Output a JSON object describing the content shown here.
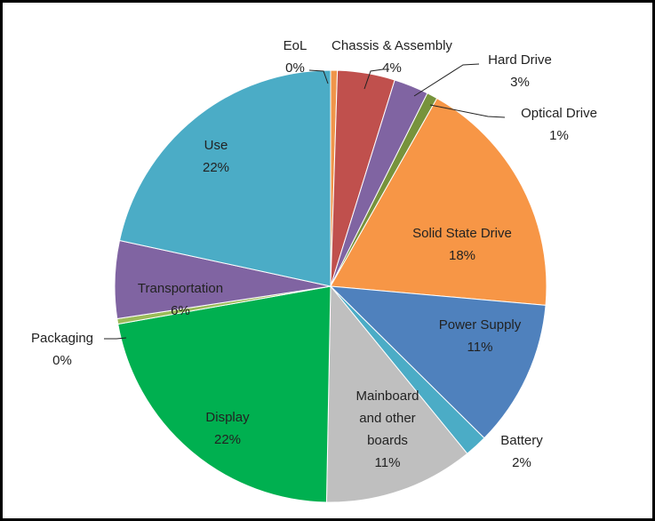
{
  "chart_data": {
    "type": "pie",
    "title": "",
    "start_angle_deg": 0,
    "direction": "clockwise",
    "slices": [
      {
        "name": "EoL",
        "value": 0.5,
        "display": "0%",
        "color": "#f0954a"
      },
      {
        "name": "Chassis & Assembly",
        "value": 4.3,
        "display": "4%",
        "color": "#c0504d"
      },
      {
        "name": "Hard Drive",
        "value": 2.6,
        "display": "3%",
        "color": "#8064a2"
      },
      {
        "name": "Optical Drive",
        "value": 0.8,
        "display": "1%",
        "color": "#77933c"
      },
      {
        "name": "Solid State Drive",
        "value": 18.2,
        "display": "18%",
        "color": "#f79646"
      },
      {
        "name": "Power Supply",
        "value": 11.0,
        "display": "11%",
        "color": "#4f81bd"
      },
      {
        "name": "Battery",
        "value": 1.7,
        "display": "2%",
        "color": "#4bacc6"
      },
      {
        "name": "Mainboard\nand other\nboards",
        "value": 11.2,
        "display": "11%",
        "color": "#bfbfbf"
      },
      {
        "name": "Display",
        "value": 21.9,
        "display": "22%",
        "color": "#00b050"
      },
      {
        "name": "Packaging",
        "value": 0.4,
        "display": "0%",
        "color": "#9bbb59"
      },
      {
        "name": "Transportation",
        "value": 5.8,
        "display": "6%",
        "color": "#8064a2"
      },
      {
        "name": "Use",
        "value": 21.6,
        "display": "22%",
        "color": "#4bacc6"
      }
    ]
  }
}
